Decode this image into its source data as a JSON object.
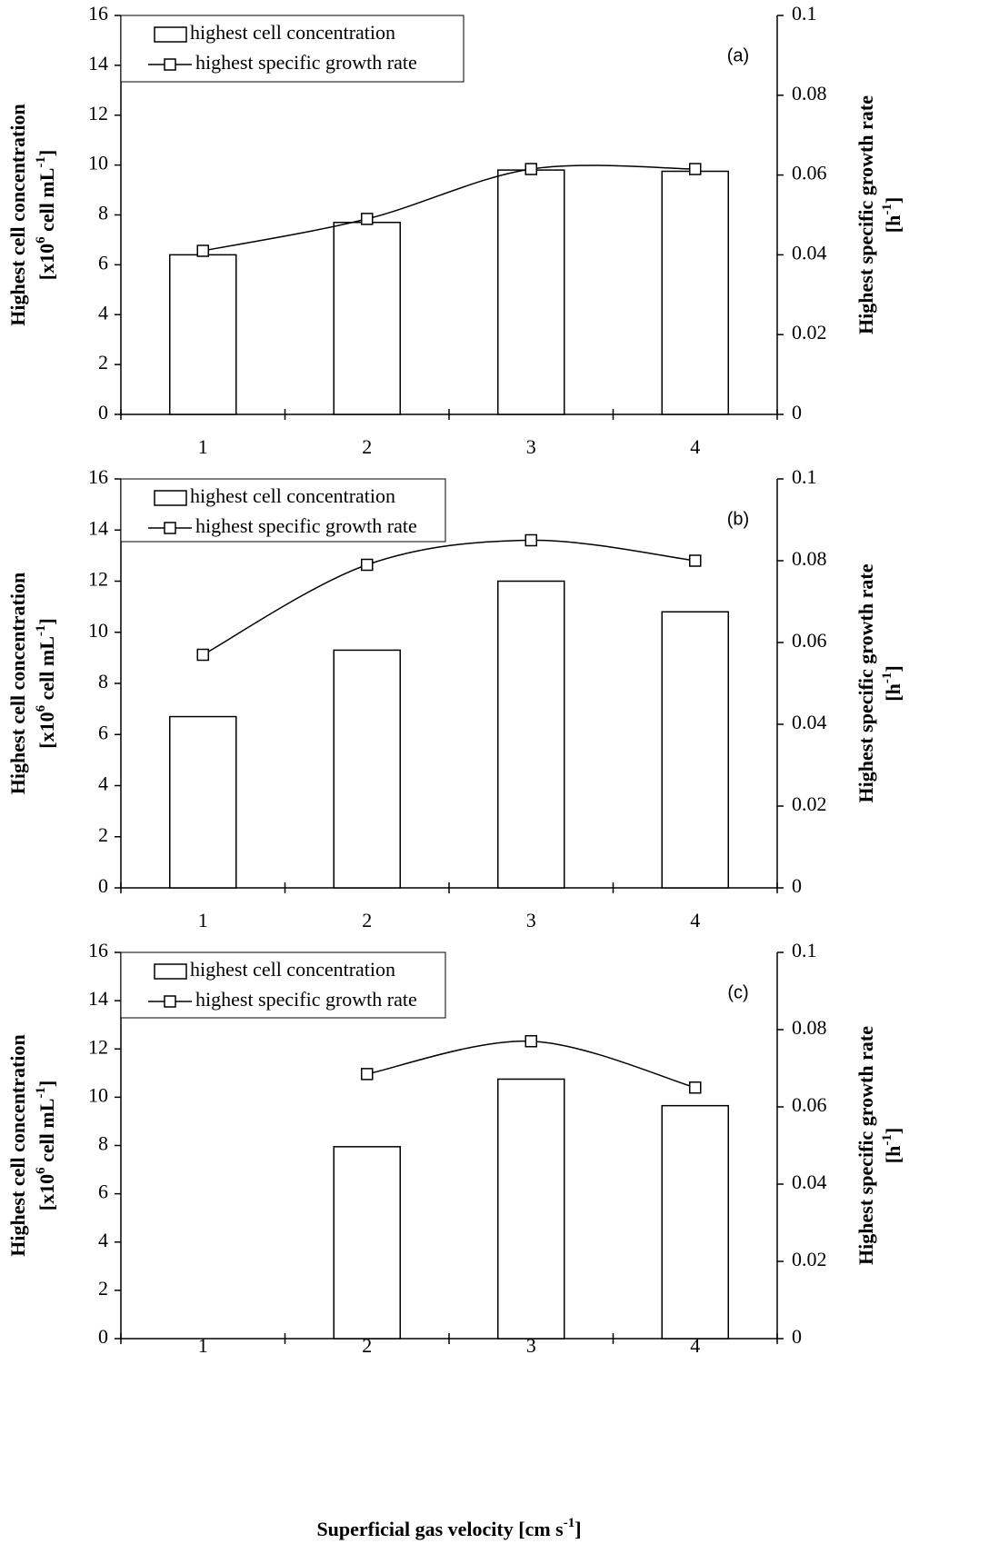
{
  "chart_data": [
    {
      "type": "combo",
      "annotation": "(a)",
      "legend": "upper left",
      "categories": [
        "1",
        "2",
        "3",
        "4"
      ],
      "ylabel": [
        [
          "Highest cell concentration"
        ],
        [
          "[x10",
          {
            "sup": "6"
          },
          " cell mL",
          {
            "sup": "-1"
          },
          "]"
        ]
      ],
      "y2label": [
        [
          "Highest specific growth rate"
        ],
        [
          "[h",
          {
            "sup": "-1"
          },
          "]"
        ]
      ],
      "ylim": [
        0,
        16
      ],
      "yticks": [
        0,
        2,
        4,
        6,
        8,
        10,
        12,
        14,
        16
      ],
      "y2lim": [
        0,
        0.1
      ],
      "y2ticks": [
        0,
        0.02,
        0.04,
        0.06,
        0.08,
        0.1
      ],
      "series": [
        {
          "name": "highest cell concentration",
          "type": "bar",
          "color": "#ffffff",
          "edgecolor": "#000000",
          "values": [
            6.4,
            7.7,
            9.8,
            9.75
          ]
        },
        {
          "name": "highest specific growth rate",
          "type": "line",
          "axis": "y2",
          "color": "#000000",
          "marker": "square",
          "smooth": true,
          "values": [
            0.041,
            0.049,
            0.0615,
            0.0615
          ]
        }
      ]
    },
    {
      "type": "combo",
      "annotation": "(b)",
      "legend": "upper left",
      "categories": [
        "1",
        "2",
        "3",
        "4"
      ],
      "ylabel": [
        [
          "Highest cell concentration"
        ],
        [
          "[x10",
          {
            "sup": "6"
          },
          " cell mL",
          {
            "sup": "-1"
          },
          "]"
        ]
      ],
      "y2label": [
        [
          "Highest specific growth rate"
        ],
        [
          "[h",
          {
            "sup": "-1"
          },
          "]"
        ]
      ],
      "ylim": [
        0,
        16
      ],
      "yticks": [
        0,
        2,
        4,
        6,
        8,
        10,
        12,
        14,
        16
      ],
      "y2lim": [
        0,
        0.1
      ],
      "y2ticks": [
        0,
        0.02,
        0.04,
        0.06,
        0.08,
        0.1
      ],
      "series": [
        {
          "name": "highest cell concentration",
          "type": "bar",
          "color": "#ffffff",
          "edgecolor": "#000000",
          "values": [
            6.7,
            9.3,
            12.0,
            10.8
          ]
        },
        {
          "name": "highest specific growth rate",
          "type": "line",
          "axis": "y2",
          "color": "#000000",
          "marker": "square",
          "smooth": true,
          "values": [
            0.057,
            0.079,
            0.085,
            0.08
          ]
        }
      ]
    },
    {
      "type": "combo",
      "annotation": "(c)",
      "legend": "upper left",
      "categories": [
        "1",
        "2",
        "3",
        "4"
      ],
      "ylabel": [
        [
          "Highest cell concentration"
        ],
        [
          "[x10",
          {
            "sup": "6"
          },
          " cell mL",
          {
            "sup": "-1"
          },
          "]"
        ]
      ],
      "y2label": [
        [
          "Highest specific growth rate"
        ],
        [
          "[h",
          {
            "sup": "-1"
          },
          "]"
        ]
      ],
      "xlabel": [
        "Superficial gas velocity [cm s",
        {
          "sup": "-1"
        },
        "]"
      ],
      "ylim": [
        0,
        16
      ],
      "yticks": [
        0,
        2,
        4,
        6,
        8,
        10,
        12,
        14,
        16
      ],
      "y2lim": [
        0,
        0.1
      ],
      "y2ticks": [
        0,
        0.02,
        0.04,
        0.06,
        0.08,
        0.1
      ],
      "series": [
        {
          "name": "highest cell concentration",
          "type": "bar",
          "color": "#ffffff",
          "edgecolor": "#000000",
          "values": [
            null,
            7.95,
            10.75,
            9.65
          ]
        },
        {
          "name": "highest specific growth rate",
          "type": "line",
          "axis": "y2",
          "color": "#000000",
          "marker": "square",
          "smooth": true,
          "values": [
            null,
            0.0685,
            0.077,
            0.065
          ]
        }
      ]
    }
  ]
}
